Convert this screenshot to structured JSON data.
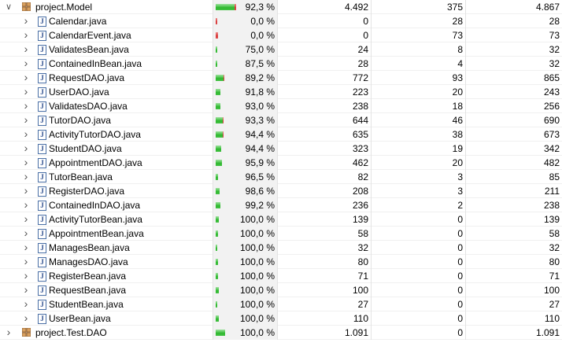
{
  "rows": [
    {
      "name": "project.Model",
      "kind": "package",
      "expanded": true,
      "coverage": "92,3 %",
      "covered": "4.492",
      "missed": "375",
      "total": "4.867",
      "cov_ratio": 0.923
    },
    {
      "name": "Calendar.java",
      "kind": "file",
      "coverage": "0,0 %",
      "covered": "0",
      "missed": "28",
      "total": "28",
      "cov_ratio": 0.0
    },
    {
      "name": "CalendarEvent.java",
      "kind": "file",
      "coverage": "0,0 %",
      "covered": "0",
      "missed": "73",
      "total": "73",
      "cov_ratio": 0.0
    },
    {
      "name": "ValidatesBean.java",
      "kind": "file",
      "coverage": "75,0 %",
      "covered": "24",
      "missed": "8",
      "total": "32",
      "cov_ratio": 0.75
    },
    {
      "name": "ContainedInBean.java",
      "kind": "file",
      "coverage": "87,5 %",
      "covered": "28",
      "missed": "4",
      "total": "32",
      "cov_ratio": 0.875
    },
    {
      "name": "RequestDAO.java",
      "kind": "file",
      "coverage": "89,2 %",
      "covered": "772",
      "missed": "93",
      "total": "865",
      "cov_ratio": 0.892
    },
    {
      "name": "UserDAO.java",
      "kind": "file",
      "coverage": "91,8 %",
      "covered": "223",
      "missed": "20",
      "total": "243",
      "cov_ratio": 0.918
    },
    {
      "name": "ValidatesDAO.java",
      "kind": "file",
      "coverage": "93,0 %",
      "covered": "238",
      "missed": "18",
      "total": "256",
      "cov_ratio": 0.93
    },
    {
      "name": "TutorDAO.java",
      "kind": "file",
      "coverage": "93,3 %",
      "covered": "644",
      "missed": "46",
      "total": "690",
      "cov_ratio": 0.933
    },
    {
      "name": "ActivityTutorDAO.java",
      "kind": "file",
      "coverage": "94,4 %",
      "covered": "635",
      "missed": "38",
      "total": "673",
      "cov_ratio": 0.944
    },
    {
      "name": "StudentDAO.java",
      "kind": "file",
      "coverage": "94,4 %",
      "covered": "323",
      "missed": "19",
      "total": "342",
      "cov_ratio": 0.944
    },
    {
      "name": "AppointmentDAO.java",
      "kind": "file",
      "coverage": "95,9 %",
      "covered": "462",
      "missed": "20",
      "total": "482",
      "cov_ratio": 0.959
    },
    {
      "name": "TutorBean.java",
      "kind": "file",
      "coverage": "96,5 %",
      "covered": "82",
      "missed": "3",
      "total": "85",
      "cov_ratio": 0.965
    },
    {
      "name": "RegisterDAO.java",
      "kind": "file",
      "coverage": "98,6 %",
      "covered": "208",
      "missed": "3",
      "total": "211",
      "cov_ratio": 0.986
    },
    {
      "name": "ContainedInDAO.java",
      "kind": "file",
      "coverage": "99,2 %",
      "covered": "236",
      "missed": "2",
      "total": "238",
      "cov_ratio": 0.992
    },
    {
      "name": "ActivityTutorBean.java",
      "kind": "file",
      "coverage": "100,0 %",
      "covered": "139",
      "missed": "0",
      "total": "139",
      "cov_ratio": 1.0
    },
    {
      "name": "AppointmentBean.java",
      "kind": "file",
      "coverage": "100,0 %",
      "covered": "58",
      "missed": "0",
      "total": "58",
      "cov_ratio": 1.0
    },
    {
      "name": "ManagesBean.java",
      "kind": "file",
      "coverage": "100,0 %",
      "covered": "32",
      "missed": "0",
      "total": "32",
      "cov_ratio": 1.0
    },
    {
      "name": "ManagesDAO.java",
      "kind": "file",
      "coverage": "100,0 %",
      "covered": "80",
      "missed": "0",
      "total": "80",
      "cov_ratio": 1.0
    },
    {
      "name": "RegisterBean.java",
      "kind": "file",
      "coverage": "100,0 %",
      "covered": "71",
      "missed": "0",
      "total": "71",
      "cov_ratio": 1.0
    },
    {
      "name": "RequestBean.java",
      "kind": "file",
      "coverage": "100,0 %",
      "covered": "100",
      "missed": "0",
      "total": "100",
      "cov_ratio": 1.0
    },
    {
      "name": "StudentBean.java",
      "kind": "file",
      "coverage": "100,0 %",
      "covered": "27",
      "missed": "0",
      "total": "27",
      "cov_ratio": 1.0
    },
    {
      "name": "UserBean.java",
      "kind": "file",
      "coverage": "100,0 %",
      "covered": "110",
      "missed": "0",
      "total": "110",
      "cov_ratio": 1.0
    },
    {
      "name": "project.Test.DAO",
      "kind": "package",
      "expanded": false,
      "coverage": "100,0 %",
      "covered": "1.091",
      "missed": "0",
      "total": "1.091",
      "cov_ratio": 1.0
    }
  ],
  "colors": {
    "covered": "#2eb82e",
    "missed": "#d83a3a",
    "package_icon": "#8a5a2b",
    "file_icon": "#4a6fa5"
  },
  "icons": {
    "package": "package-icon",
    "file": "java-file-icon",
    "expand": "chevron-down-icon",
    "collapse": "chevron-right-icon"
  }
}
